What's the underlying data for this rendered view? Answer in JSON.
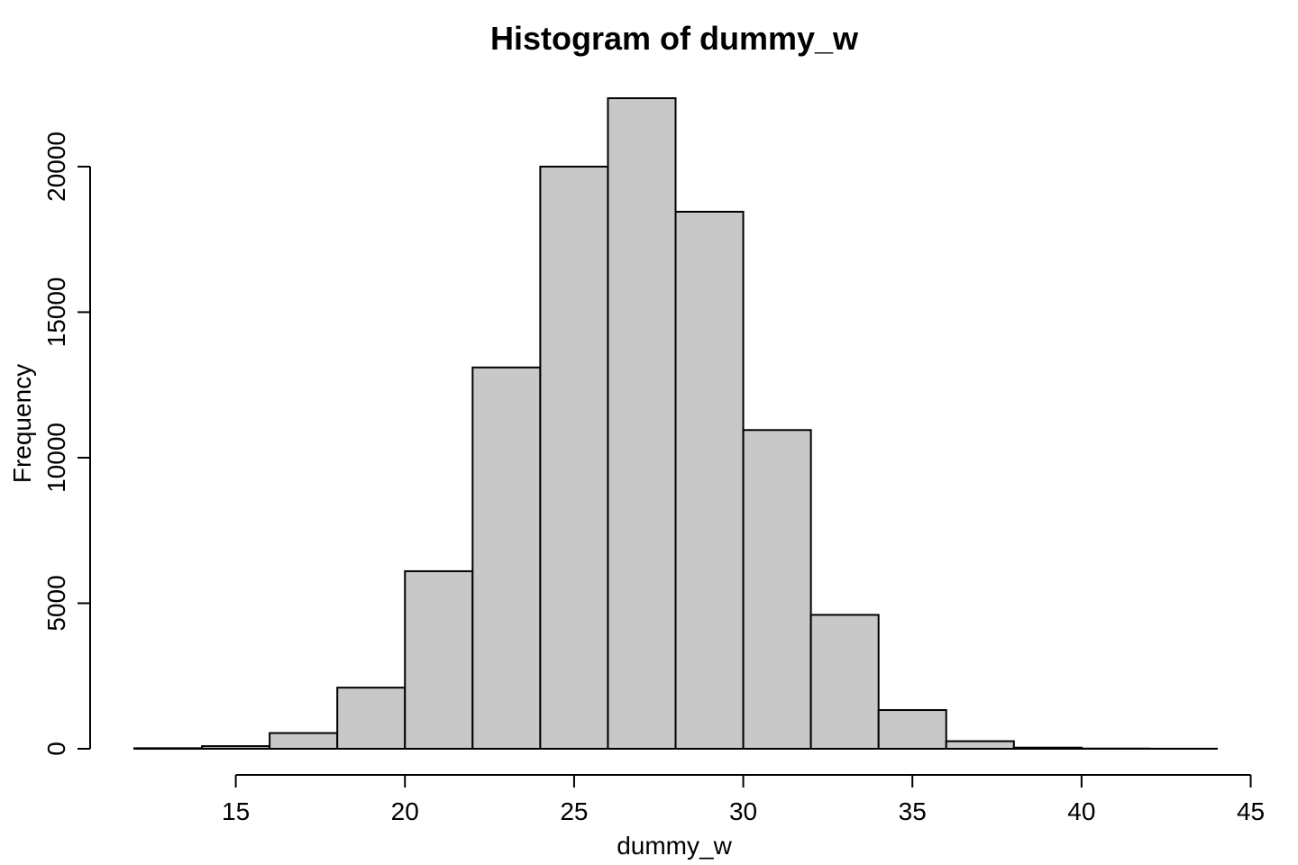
{
  "chart_data": {
    "type": "bar",
    "title": "Histogram of dummy_w",
    "xlabel": "dummy_w",
    "ylabel": "Frequency",
    "bar_color": "#c8c8c8",
    "edge_color": "#000000",
    "bins": [
      {
        "x0": 12,
        "x1": 14,
        "count": 20
      },
      {
        "x0": 14,
        "x1": 16,
        "count": 90
      },
      {
        "x0": 16,
        "x1": 18,
        "count": 540
      },
      {
        "x0": 18,
        "x1": 20,
        "count": 2100
      },
      {
        "x0": 20,
        "x1": 22,
        "count": 6100
      },
      {
        "x0": 22,
        "x1": 24,
        "count": 13100
      },
      {
        "x0": 24,
        "x1": 26,
        "count": 20000
      },
      {
        "x0": 26,
        "x1": 28,
        "count": 22350
      },
      {
        "x0": 28,
        "x1": 30,
        "count": 18450
      },
      {
        "x0": 30,
        "x1": 32,
        "count": 10950
      },
      {
        "x0": 32,
        "x1": 34,
        "count": 4600
      },
      {
        "x0": 34,
        "x1": 36,
        "count": 1330
      },
      {
        "x0": 36,
        "x1": 38,
        "count": 260
      },
      {
        "x0": 38,
        "x1": 40,
        "count": 40
      },
      {
        "x0": 40,
        "x1": 42,
        "count": 8
      },
      {
        "x0": 42,
        "x1": 44,
        "count": 3
      }
    ],
    "xlim": [
      12,
      44
    ],
    "ylim": [
      0,
      22350
    ],
    "x_ticks": [
      15,
      20,
      25,
      30,
      35,
      40,
      45
    ],
    "y_ticks": [
      0,
      5000,
      10000,
      15000,
      20000
    ],
    "x_tick_labels": [
      "15",
      "20",
      "25",
      "30",
      "35",
      "40",
      "45"
    ],
    "y_tick_labels": [
      "0",
      "5000",
      "10000",
      "15000",
      "20000"
    ],
    "grid": false,
    "legend": "none"
  }
}
